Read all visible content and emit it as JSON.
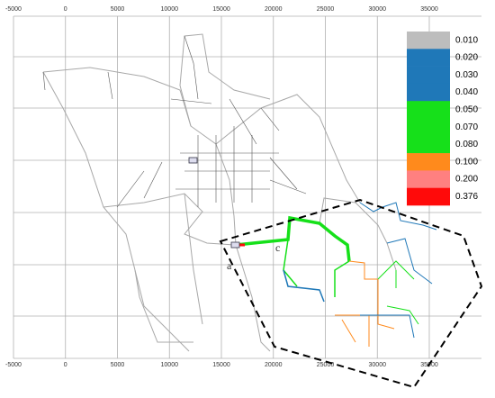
{
  "map": {
    "x_ticks": [
      -5000,
      0,
      5000,
      10000,
      15000,
      20000,
      25000,
      30000,
      35000
    ],
    "legend": [
      {
        "label": "0.010",
        "color": "#bdbdbd"
      },
      {
        "label": "0.020",
        "color": "#1f78b8"
      },
      {
        "label": "0.030",
        "color": "#1f78b8"
      },
      {
        "label": "0.040",
        "color": "#1f78b8"
      },
      {
        "label": "0.050",
        "color": "#16e01a"
      },
      {
        "label": "0.070",
        "color": "#16e01a"
      },
      {
        "label": "0.080",
        "color": "#16e01a"
      },
      {
        "label": "0.100",
        "color": "#ff8a1c"
      },
      {
        "label": "0.200",
        "color": "#ff8080"
      },
      {
        "label": "0.376",
        "color": "#ff0a0a"
      }
    ],
    "annotations": [
      "a",
      "c"
    ]
  }
}
